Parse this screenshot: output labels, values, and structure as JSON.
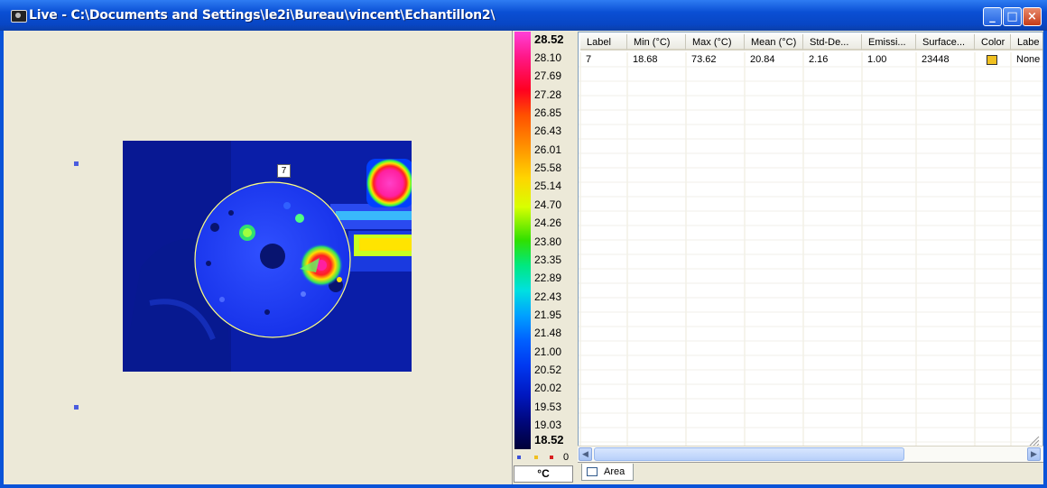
{
  "window": {
    "title": "Live - C:\\Documents and Settings\\le2i\\Bureau\\vincent\\Echantillon2\\",
    "minimize_glyph": "_",
    "maximize_glyph": "□",
    "close_glyph": "×"
  },
  "image_view": {
    "roi_label": "7"
  },
  "scale": {
    "max_label": "28.52",
    "min_label": "18.52",
    "ticks": [
      "28.10",
      "27.69",
      "27.28",
      "26.85",
      "26.43",
      "26.01",
      "25.58",
      "25.14",
      "24.70",
      "24.26",
      "23.80",
      "23.35",
      "22.89",
      "22.43",
      "21.95",
      "21.48",
      "21.00",
      "20.52",
      "20.02",
      "19.53",
      "19.03"
    ],
    "legend_count": "0",
    "legend_colors": [
      "#3a50d8",
      "#f0c020",
      "#d82020"
    ],
    "unit": "°C"
  },
  "table": {
    "headers": [
      "Label",
      "Min (°C)",
      "Max (°C)",
      "Mean (°C)",
      "Std-De...",
      "Emissi...",
      "Surface...",
      "Color",
      "Labe"
    ],
    "row": {
      "label": "7",
      "min": "18.68",
      "max": "73.62",
      "mean": "20.84",
      "std": "2.16",
      "emissivity": "1.00",
      "surface": "23448",
      "color": "#f0c020",
      "label_mode": "None"
    }
  },
  "tabs": {
    "area_label": "Area"
  }
}
